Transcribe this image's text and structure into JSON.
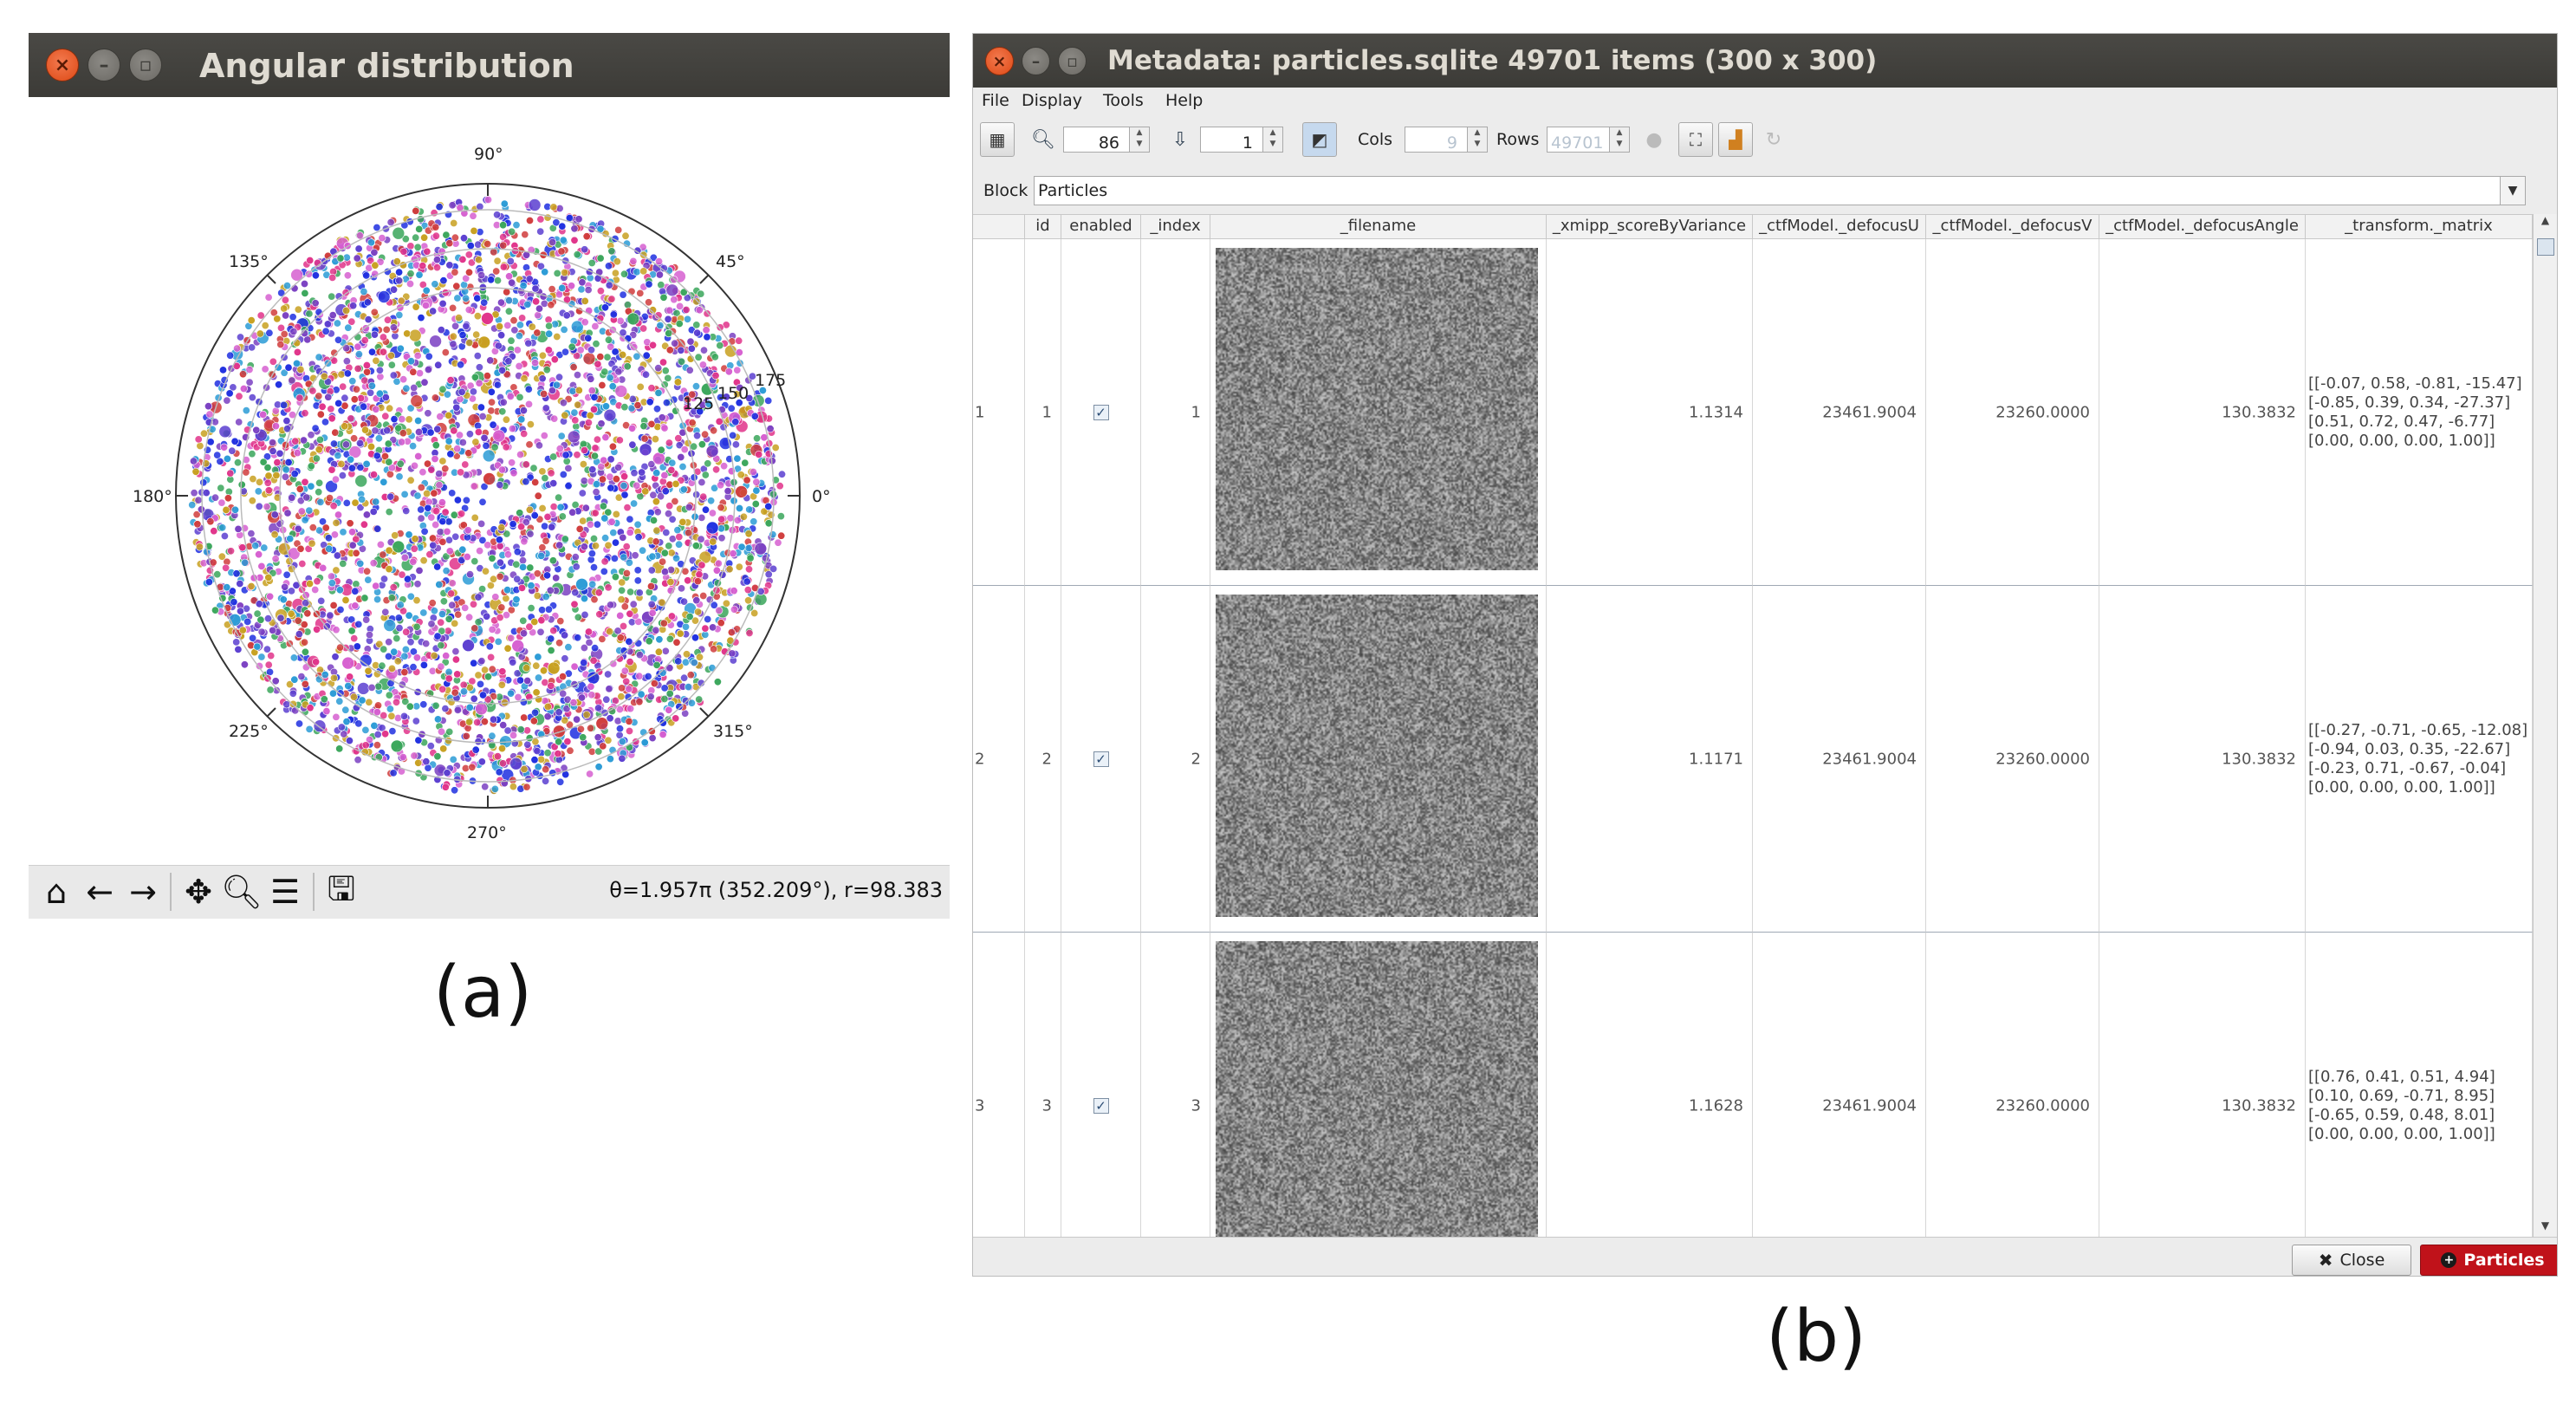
{
  "panel_a": {
    "label": "(a)",
    "window_title": "Angular distribution",
    "polar_plot": {
      "angle_labels": [
        "0°",
        "45°",
        "90°",
        "135°",
        "180°",
        "225°",
        "270°",
        "315°"
      ],
      "radial_labels": [
        "125",
        "150",
        "175"
      ],
      "colors": [
        "#1f2fe0",
        "#e0338a",
        "#7a3fc2",
        "#2a9bd6",
        "#d03c3c",
        "#3aa65a",
        "#c8a020",
        "#5b3ed0",
        "#d65fd0"
      ]
    },
    "toolbar": {
      "icons": [
        "home-icon",
        "back-arrow-icon",
        "forward-arrow-icon",
        "pan-icon",
        "zoom-icon",
        "configure-subplots-icon",
        "save-icon"
      ],
      "coords": "θ=1.957π (352.209°), r=98.383"
    }
  },
  "panel_b": {
    "label": "(b)",
    "window_title": "Metadata: particles.sqlite 49701 items (300 x 300)",
    "menu": [
      "File",
      "Display",
      "Tools",
      "Help"
    ],
    "toolbar": {
      "zoom_value": "86",
      "goto_value": "1",
      "cols_label": "Cols",
      "cols_value": "9",
      "rows_label": "Rows",
      "rows_value": "49701"
    },
    "block_label": "Block",
    "block_value": "Particles",
    "columns": [
      "id",
      "enabled",
      "_index",
      "_filename",
      "_xmipp_scoreByVariance",
      "_ctfModel._defocusU",
      "_ctfModel._defocusV",
      "_ctfModel._defocusAngle",
      "_transform._matrix"
    ],
    "rows": [
      {
        "row": "1",
        "id": "1",
        "enabled": "✓",
        "index": "1",
        "score": "1.1314",
        "defocusU": "23461.9004",
        "defocusV": "23260.0000",
        "angle": "130.3832",
        "matrix": "[[-0.07, 0.58, -0.81, -15.47]\n[-0.85, 0.39, 0.34, -27.37]\n[0.51, 0.72, 0.47, -6.77]\n[0.00, 0.00, 0.00, 1.00]]"
      },
      {
        "row": "2",
        "id": "2",
        "enabled": "✓",
        "index": "2",
        "score": "1.1171",
        "defocusU": "23461.9004",
        "defocusV": "23260.0000",
        "angle": "130.3832",
        "matrix": "[[-0.27, -0.71, -0.65, -12.08]\n[-0.94, 0.03, 0.35, -22.67]\n[-0.23, 0.71, -0.67, -0.04]\n[0.00, 0.00, 0.00, 1.00]]"
      },
      {
        "row": "3",
        "id": "3",
        "enabled": "✓",
        "index": "3",
        "score": "1.1628",
        "defocusU": "23461.9004",
        "defocusV": "23260.0000",
        "angle": "130.3832",
        "matrix": "[[0.76, 0.41, 0.51, 4.94]\n[0.10, 0.69, -0.71, 8.95]\n[-0.65, 0.59, 0.48, 8.01]\n[0.00, 0.00, 0.00, 1.00]]"
      }
    ],
    "buttons": {
      "close": "Close",
      "particles": "Particles"
    }
  }
}
